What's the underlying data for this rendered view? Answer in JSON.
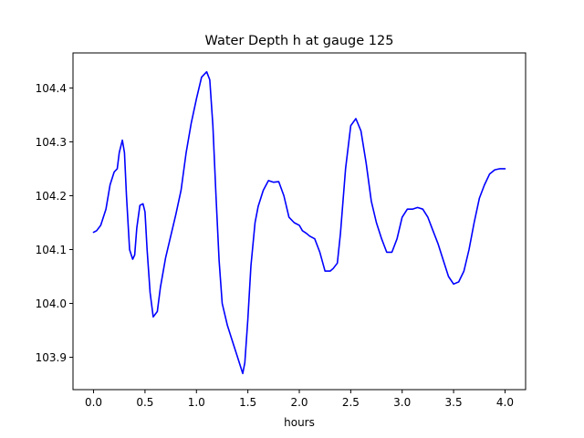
{
  "chart_data": {
    "type": "line",
    "title": "Water Depth h at gauge 125",
    "xlabel": "hours",
    "ylabel": "",
    "xlim": [
      -0.2,
      4.2
    ],
    "ylim": [
      103.84,
      104.465
    ],
    "xticks": [
      0.0,
      0.5,
      1.0,
      1.5,
      2.0,
      2.5,
      3.0,
      3.5,
      4.0
    ],
    "xtick_labels": [
      "0.0",
      "0.5",
      "1.0",
      "1.5",
      "2.0",
      "2.5",
      "3.0",
      "3.5",
      "4.0"
    ],
    "yticks": [
      103.9,
      104.0,
      104.1,
      104.2,
      104.3,
      104.4
    ],
    "ytick_labels": [
      "103.9",
      "104.0",
      "104.1",
      "104.2",
      "104.3",
      "104.4"
    ],
    "grid": false,
    "color": "#0000ff",
    "series": [
      {
        "x": [
          0.0,
          0.03,
          0.07,
          0.12,
          0.16,
          0.2,
          0.23,
          0.25,
          0.28,
          0.3,
          0.32,
          0.35,
          0.38,
          0.4,
          0.42,
          0.45,
          0.48,
          0.5,
          0.52,
          0.55,
          0.58,
          0.62,
          0.65,
          0.7,
          0.75,
          0.8,
          0.85,
          0.9,
          0.95,
          1.0,
          1.05,
          1.1,
          1.13,
          1.16,
          1.19,
          1.22,
          1.25,
          1.3,
          1.35,
          1.4,
          1.45,
          1.47,
          1.5,
          1.53,
          1.57,
          1.6,
          1.65,
          1.7,
          1.75,
          1.8,
          1.85,
          1.9,
          1.95,
          2.0,
          2.03,
          2.07,
          2.1,
          2.15,
          2.2,
          2.25,
          2.3,
          2.33,
          2.37,
          2.4,
          2.45,
          2.5,
          2.55,
          2.6,
          2.65,
          2.7,
          2.75,
          2.8,
          2.85,
          2.9,
          2.95,
          3.0,
          3.05,
          3.1,
          3.15,
          3.2,
          3.25,
          3.3,
          3.35,
          3.4,
          3.45,
          3.5,
          3.55,
          3.6,
          3.65,
          3.7,
          3.75,
          3.8,
          3.85,
          3.9,
          3.95,
          4.0
        ],
        "y": [
          104.132,
          104.135,
          104.145,
          104.175,
          104.22,
          104.244,
          104.25,
          104.28,
          104.303,
          104.28,
          104.2,
          104.1,
          104.082,
          104.09,
          104.14,
          104.182,
          104.185,
          104.17,
          104.1,
          104.02,
          103.975,
          103.985,
          104.03,
          104.085,
          104.125,
          104.165,
          104.21,
          104.28,
          104.335,
          104.38,
          104.42,
          104.43,
          104.415,
          104.33,
          104.2,
          104.08,
          104.0,
          103.96,
          103.93,
          103.9,
          103.87,
          103.89,
          103.97,
          104.07,
          104.15,
          104.18,
          104.21,
          104.228,
          104.225,
          104.226,
          104.2,
          104.16,
          104.15,
          104.145,
          104.135,
          104.13,
          104.125,
          104.12,
          104.095,
          104.06,
          104.06,
          104.065,
          104.075,
          104.13,
          104.25,
          104.33,
          104.343,
          104.32,
          104.26,
          104.19,
          104.15,
          104.12,
          104.095,
          104.095,
          104.12,
          104.16,
          104.175,
          104.175,
          104.178,
          104.175,
          104.16,
          104.135,
          104.11,
          104.08,
          104.05,
          104.036,
          104.04,
          104.06,
          104.1,
          104.15,
          104.195,
          104.22,
          104.24,
          104.248,
          104.25,
          104.25
        ]
      }
    ]
  }
}
